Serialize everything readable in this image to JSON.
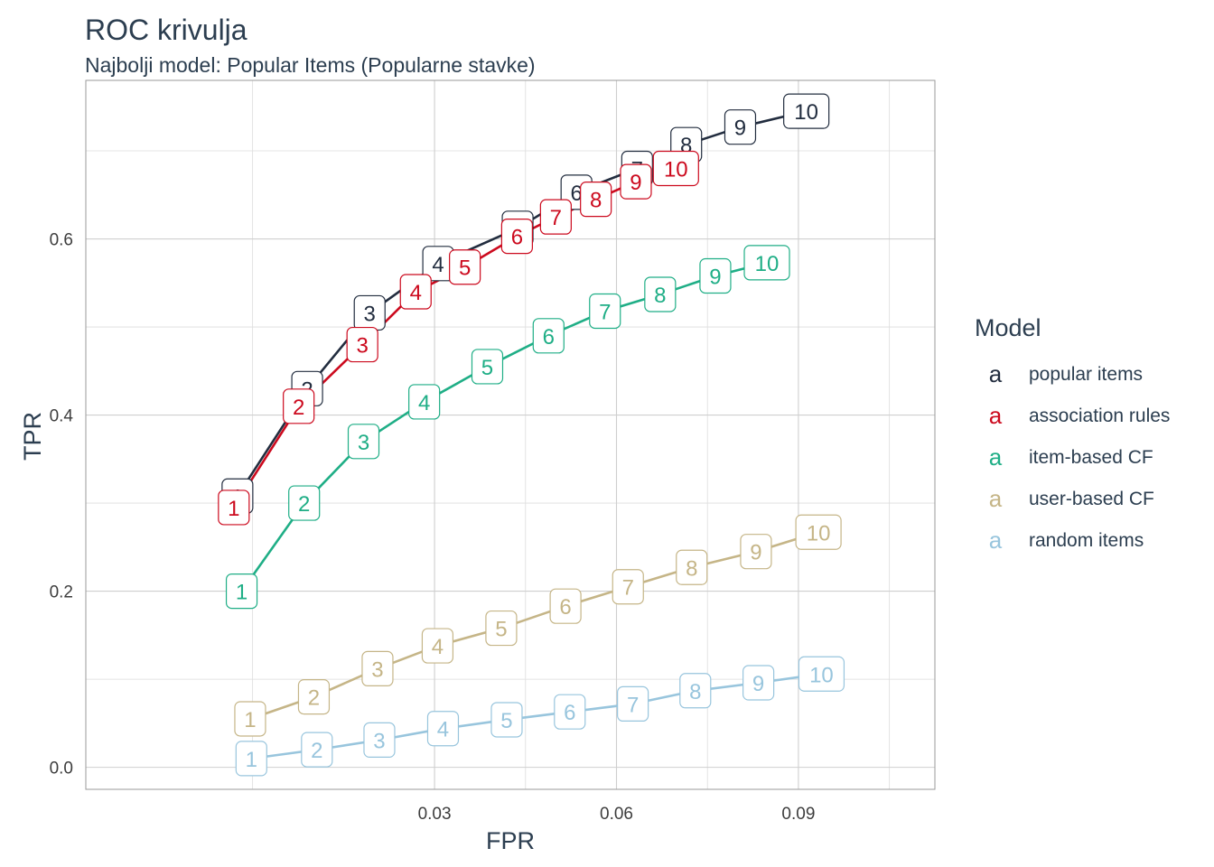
{
  "chart_data": {
    "type": "line",
    "title": "ROC krivulja",
    "subtitle": "Najbolji model: Popular Items (Popularne stavke)",
    "xlabel": "FPR",
    "ylabel": "TPR",
    "xlim": [
      -0.0275,
      0.1125
    ],
    "ylim": [
      -0.025,
      0.78
    ],
    "x_ticks": [
      0.03,
      0.06,
      0.09
    ],
    "x_tick_labels": [
      "0.03",
      "0.06",
      "0.09"
    ],
    "y_ticks": [
      0.0,
      0.2,
      0.4,
      0.6
    ],
    "y_tick_labels": [
      "0.0",
      "0.2",
      "0.4",
      "0.6"
    ],
    "x_minor": [
      0.0,
      0.045,
      0.075,
      0.105
    ],
    "y_minor": [
      0.1,
      0.3,
      0.5,
      0.7
    ],
    "grid": true,
    "legend": {
      "title": "Model",
      "position": "right",
      "key_glyph": "a"
    },
    "series": [
      {
        "name": "popular items",
        "color": "#222d3f",
        "labels": [
          "1",
          "2",
          "3",
          "4",
          "5",
          "6",
          "7",
          "8",
          "9",
          "10"
        ],
        "x": [
          -0.0025,
          0.009,
          0.0193,
          0.0306,
          0.0437,
          0.0534,
          0.0634,
          0.0715,
          0.0804,
          0.0913
        ],
        "y": [
          0.308,
          0.43,
          0.516,
          0.572,
          0.612,
          0.653,
          0.68,
          0.707,
          0.727,
          0.745
        ]
      },
      {
        "name": "association rules",
        "color": "#cc0a1e",
        "labels": [
          "1",
          "2",
          "3",
          "4",
          "5",
          "6",
          "7",
          "8",
          "9",
          "10"
        ],
        "x": [
          -0.0031,
          0.0076,
          0.0181,
          0.0269,
          0.035,
          0.0436,
          0.05,
          0.0566,
          0.0632,
          0.0698
        ],
        "y": [
          0.295,
          0.41,
          0.48,
          0.54,
          0.568,
          0.603,
          0.625,
          0.645,
          0.665,
          0.68
        ]
      },
      {
        "name": "item-based CF",
        "color": "#1fae86",
        "labels": [
          "1",
          "2",
          "3",
          "4",
          "5",
          "6",
          "7",
          "8",
          "9",
          "10"
        ],
        "x": [
          -0.0018,
          0.0085,
          0.0183,
          0.0283,
          0.0387,
          0.0488,
          0.0581,
          0.0672,
          0.0763,
          0.0848
        ],
        "y": [
          0.2,
          0.3,
          0.37,
          0.415,
          0.455,
          0.49,
          0.518,
          0.537,
          0.558,
          0.573
        ]
      },
      {
        "name": "user-based CF",
        "color": "#c5b587",
        "labels": [
          "1",
          "2",
          "3",
          "4",
          "5",
          "6",
          "7",
          "8",
          "9",
          "10"
        ],
        "x": [
          -0.0004,
          0.0101,
          0.0206,
          0.0305,
          0.041,
          0.0516,
          0.0619,
          0.0724,
          0.083,
          0.0933
        ],
        "y": [
          0.055,
          0.08,
          0.112,
          0.138,
          0.158,
          0.183,
          0.205,
          0.227,
          0.245,
          0.267
        ]
      },
      {
        "name": "random items",
        "color": "#98c5dd",
        "labels": [
          "1",
          "2",
          "3",
          "4",
          "5",
          "6",
          "7",
          "8",
          "9",
          "10"
        ],
        "x": [
          -0.0002,
          0.0106,
          0.0209,
          0.0314,
          0.0419,
          0.0523,
          0.0627,
          0.073,
          0.0834,
          0.0938
        ],
        "y": [
          0.01,
          0.02,
          0.031,
          0.044,
          0.054,
          0.063,
          0.072,
          0.087,
          0.096,
          0.106
        ]
      }
    ]
  }
}
